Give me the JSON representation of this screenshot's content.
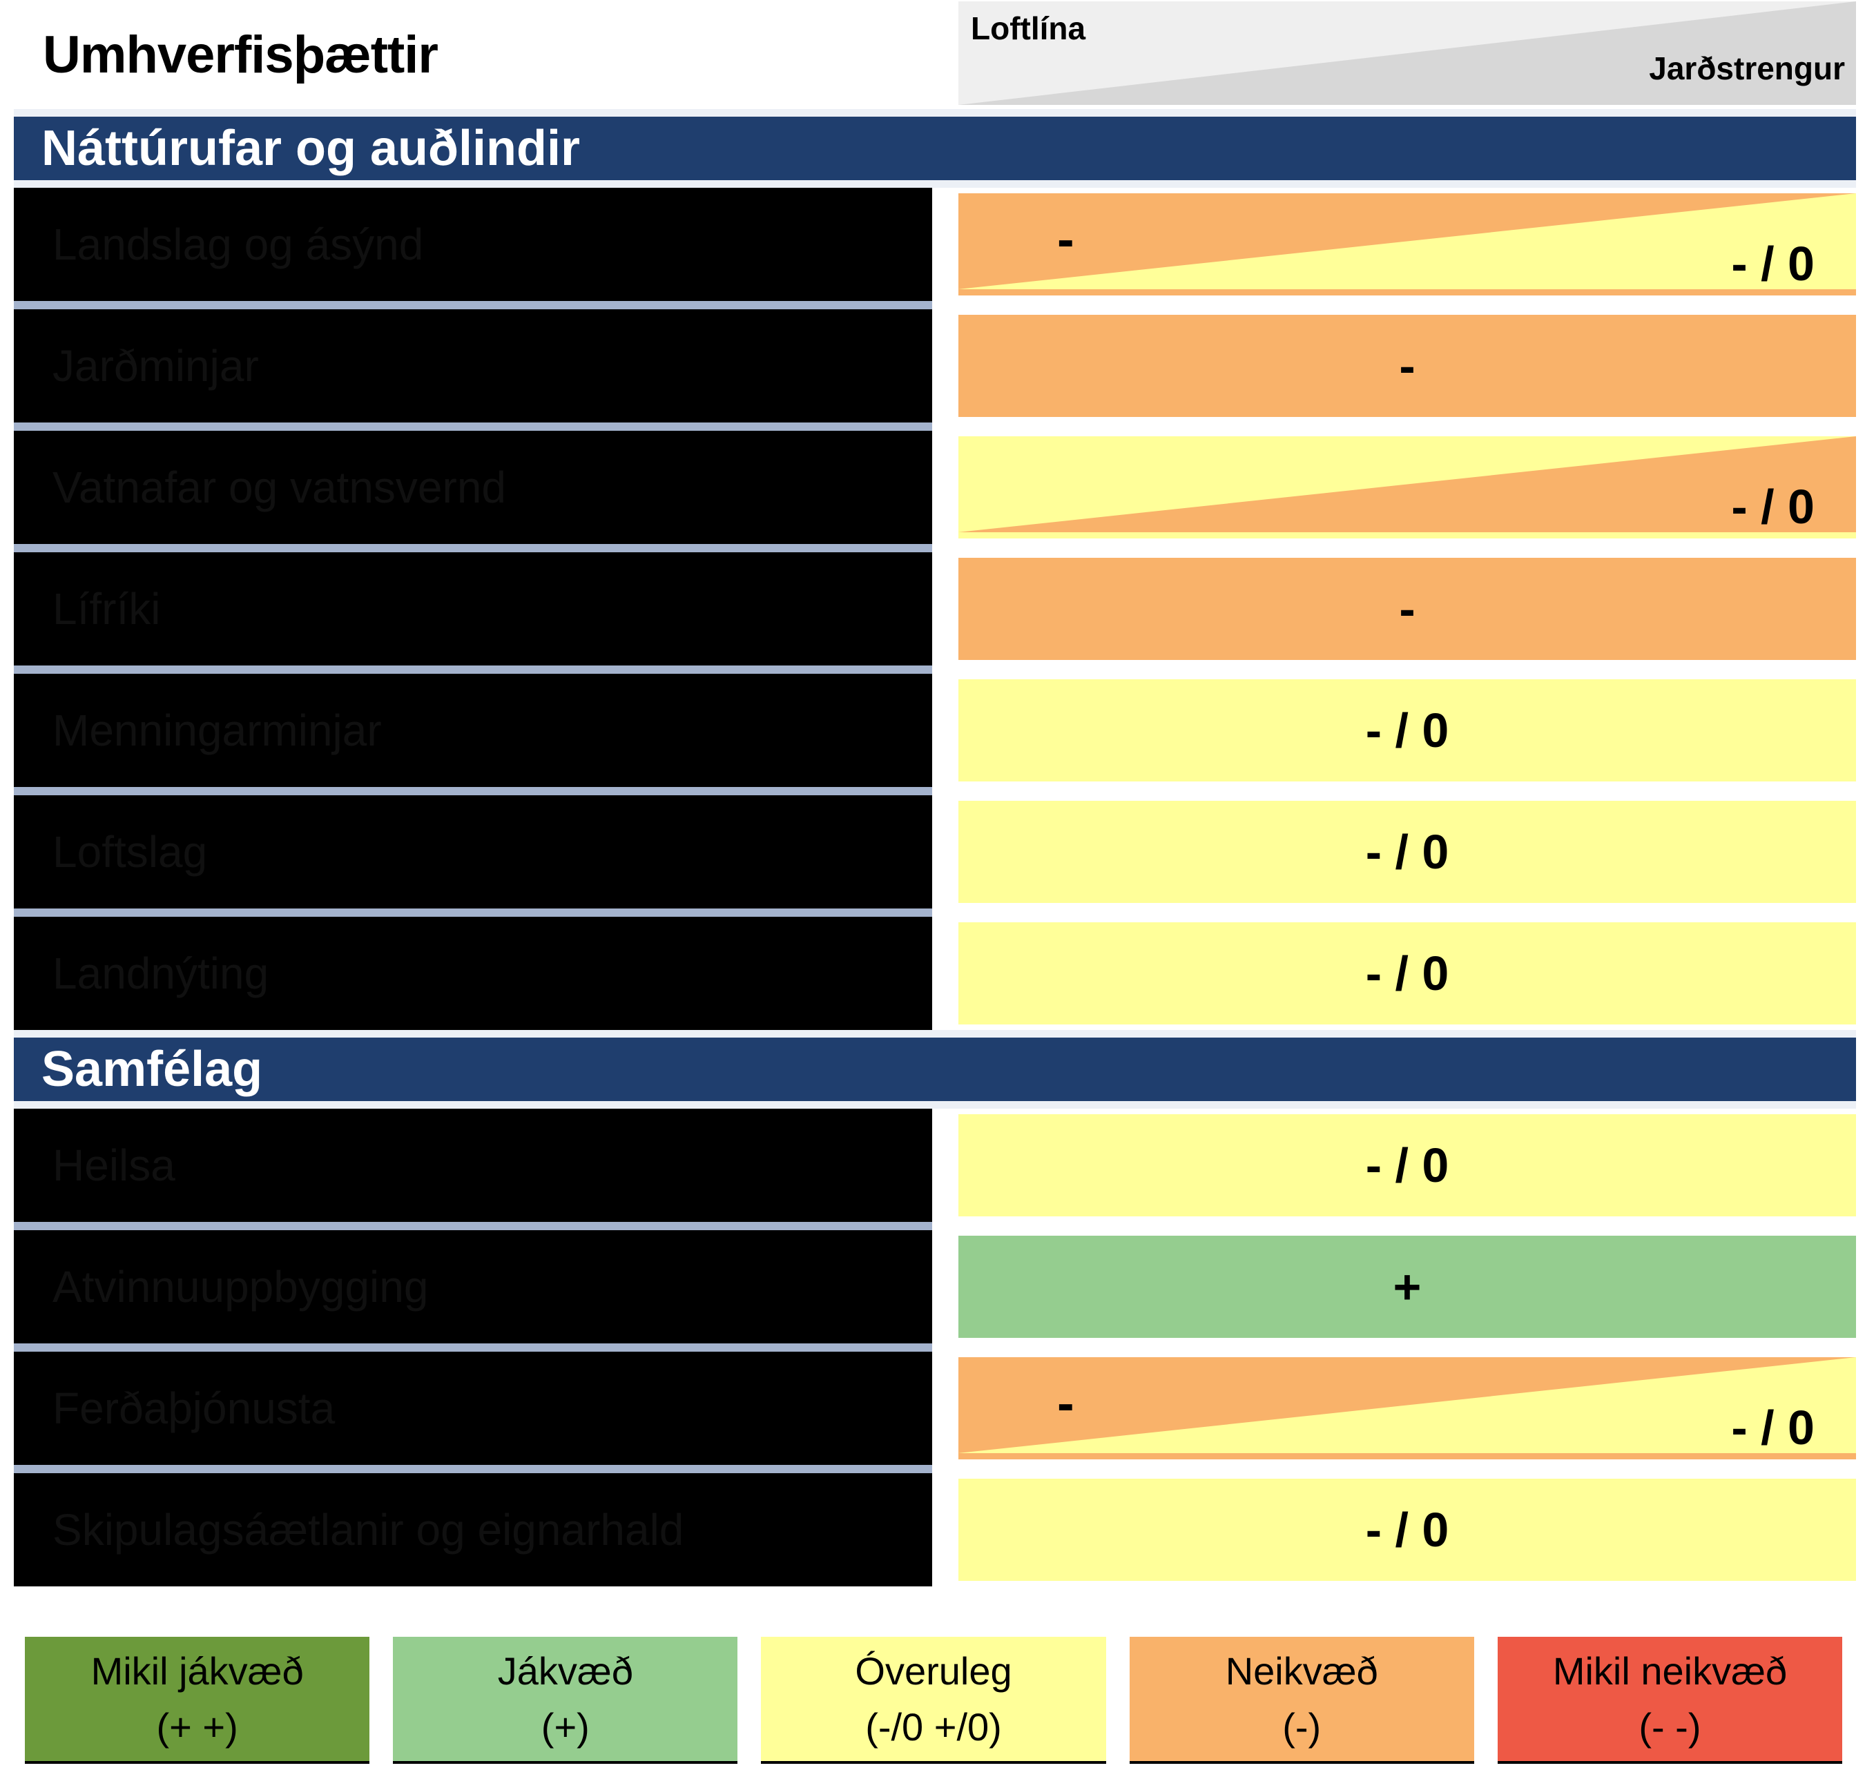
{
  "header": {
    "title": "Umhverfisþættir",
    "column_left": "Loftlína",
    "column_right": "Jarðstrengur"
  },
  "chart_data": {
    "type": "table",
    "title": "Umhverfisþættir",
    "columns": [
      "Loftlína",
      "Jarðstrengur"
    ],
    "sections": [
      {
        "title": "Náttúrufar og auðlindir",
        "rows": [
          {
            "factor": "Landslag og ásýnd",
            "fill": "orange",
            "wedge": "yellow",
            "left": "-",
            "right": "- / 0"
          },
          {
            "factor": "Jarðminjar",
            "fill": "orange",
            "center": "-"
          },
          {
            "factor": "Vatnafar og vatnsvernd",
            "fill": "yellow",
            "wedge": "orange",
            "right": "- / 0"
          },
          {
            "factor": "Lífríki",
            "fill": "orange",
            "center": "-"
          },
          {
            "factor": "Menningarminjar",
            "fill": "yellow",
            "center": "- / 0"
          },
          {
            "factor": "Loftslag",
            "fill": "yellow",
            "center": "- / 0"
          },
          {
            "factor": "Landnýting",
            "fill": "yellow",
            "center": "- / 0"
          }
        ]
      },
      {
        "title": "Samfélag",
        "rows": [
          {
            "factor": "Heilsa",
            "fill": "yellow",
            "center": "- / 0"
          },
          {
            "factor": "Atvinnuuppbygging",
            "fill": "green",
            "center": "+"
          },
          {
            "factor": "Ferðaþjónusta",
            "fill": "orange",
            "wedge": "yellow",
            "left": "-",
            "right": "- / 0"
          },
          {
            "factor": "Skipulagsáætlanir og eignarhald",
            "fill": "yellow",
            "center": "- / 0"
          }
        ]
      }
    ]
  },
  "legend": [
    {
      "label": "Mikil jákvæð",
      "symbol": "(+ +)",
      "color": "dark_green"
    },
    {
      "label": "Jákvæð",
      "symbol": "(+)",
      "color": "green"
    },
    {
      "label": "Óveruleg",
      "symbol": "(-/0  +/0)",
      "color": "yellow"
    },
    {
      "label": "Neikvæð",
      "symbol": "(-)",
      "color": "orange"
    },
    {
      "label": "Mikil neikvæð",
      "symbol": "(- -)",
      "color": "red"
    }
  ],
  "colors": {
    "orange": "#F9B26A",
    "yellow": "#FFFF99",
    "green": "#95CD8F",
    "dark_green": "#6C9A3B",
    "red": "#EE5945",
    "navy": "#1F3E6E",
    "separator": "#A4B3CD",
    "header_bg": "#EFEFEF",
    "header_triangle": "#D7D7D7",
    "band": "#ECF0F6"
  }
}
